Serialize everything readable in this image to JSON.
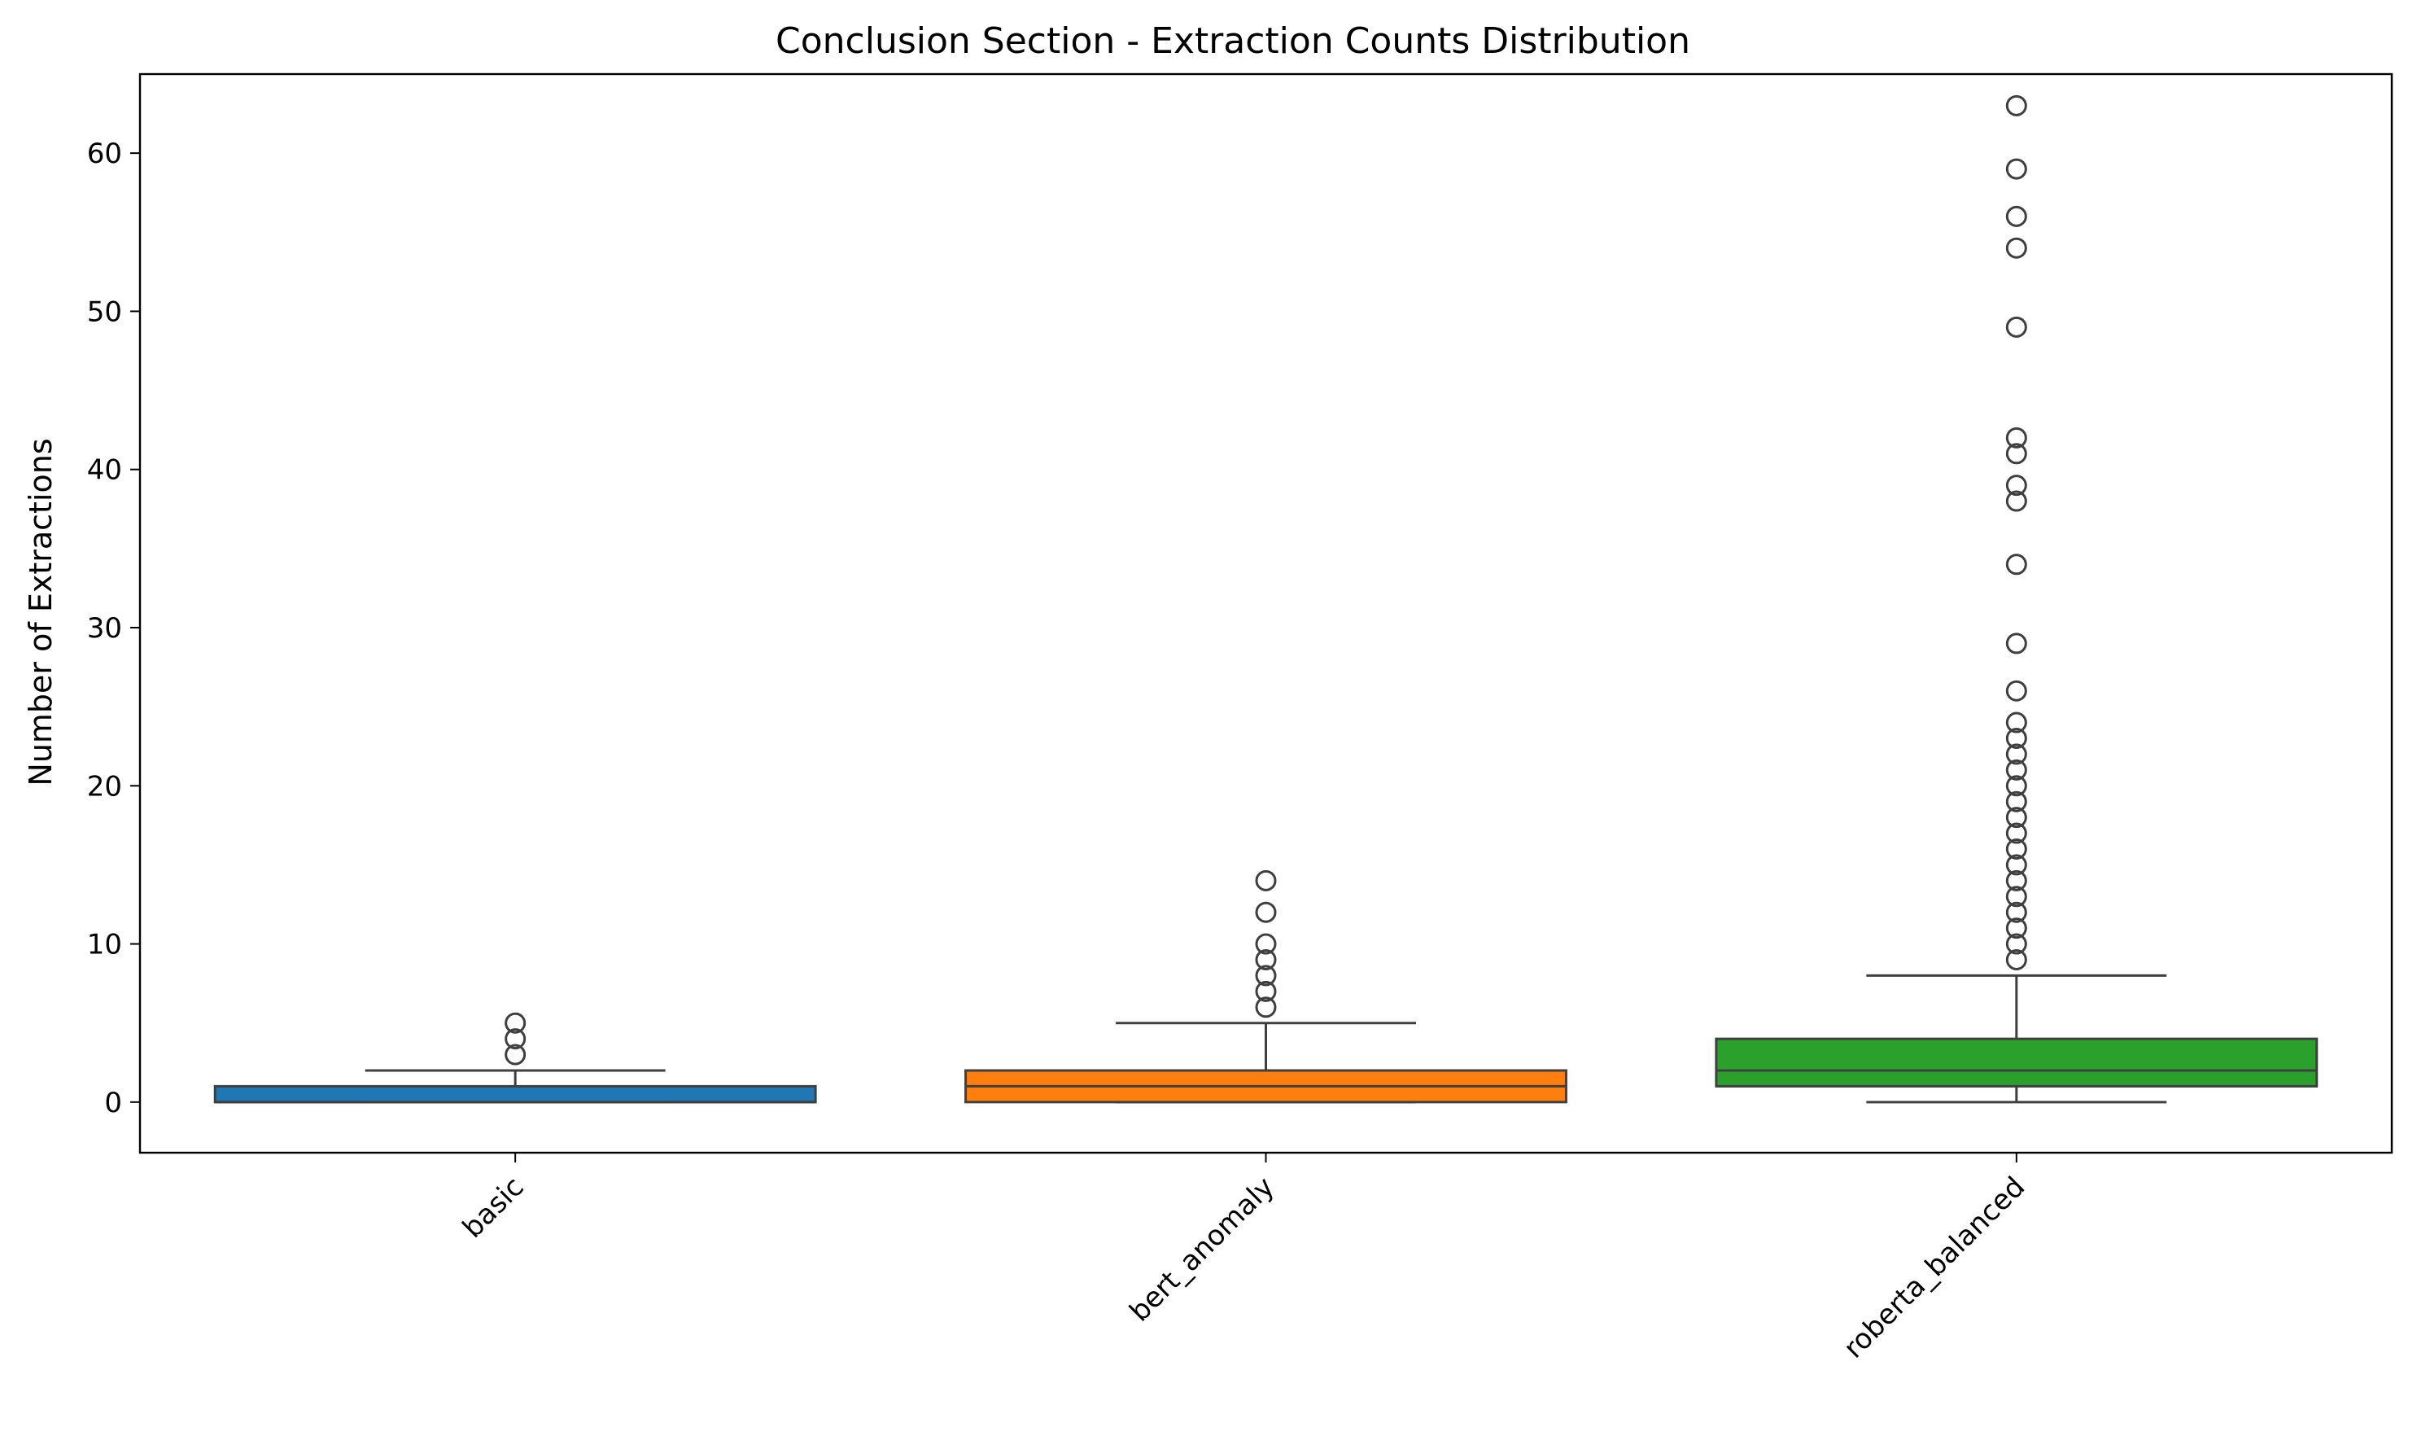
{
  "chart_data": {
    "type": "box",
    "title": "Conclusion Section - Extraction Counts Distribution",
    "xlabel": "",
    "ylabel": "Number of Extractions",
    "ylim": [
      -3.2,
      65.0
    ],
    "yticks": [
      0,
      10,
      20,
      30,
      40,
      50,
      60
    ],
    "grid": false,
    "categories": [
      "basic",
      "bert_anomaly",
      "roberta_balanced"
    ],
    "boxes": [
      {
        "category": "basic",
        "color": "#1f77b4",
        "whisker_low": 0,
        "q1": 0,
        "median": 0,
        "q3": 1,
        "whisker_high": 2,
        "outliers": [
          3,
          4,
          5
        ]
      },
      {
        "category": "bert_anomaly",
        "color": "#ff7f0e",
        "whisker_low": 0,
        "q1": 0,
        "median": 1,
        "q3": 2,
        "whisker_high": 5,
        "outliers": [
          6,
          7,
          8,
          9,
          10,
          12,
          14
        ]
      },
      {
        "category": "roberta_balanced",
        "color": "#2ca02c",
        "whisker_low": 0,
        "q1": 1,
        "median": 2,
        "q3": 4,
        "whisker_high": 8,
        "outliers": [
          9,
          10,
          11,
          12,
          13,
          14,
          15,
          16,
          17,
          18,
          19,
          20,
          21,
          22,
          23,
          24,
          26,
          29,
          34,
          38,
          39,
          41,
          42,
          49,
          54,
          56,
          59,
          63
        ]
      }
    ]
  }
}
